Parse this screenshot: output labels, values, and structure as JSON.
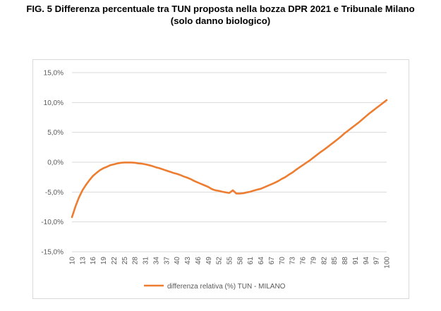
{
  "title_line1": "FIG. 5 Differenza percentuale tra TUN proposta nella bozza DPR 2021 e Tribunale Milano",
  "title_line2": "(solo danno biologico)",
  "colors": {
    "line": "#ED7D31",
    "grid": "#d9d9d9",
    "text": "#595959"
  },
  "chart_data": {
    "type": "line",
    "title": "FIG. 5 Differenza percentuale tra TUN proposta nella bozza DPR 2021 e Tribunale Milano (solo danno biologico)",
    "xlabel": "",
    "ylabel": "",
    "ylim": [
      -15,
      15
    ],
    "y_ticks": [
      "15,0%",
      "10,0%",
      "5,0%",
      "0,0%",
      "-5,0%",
      "-10,0%",
      "-15,0%"
    ],
    "y_tick_values": [
      15,
      10,
      5,
      0,
      -5,
      -10,
      -15
    ],
    "x_tick_labels": [
      "10",
      "13",
      "16",
      "19",
      "22",
      "25",
      "28",
      "31",
      "34",
      "37",
      "40",
      "43",
      "46",
      "49",
      "52",
      "55",
      "58",
      "61",
      "64",
      "67",
      "70",
      "73",
      "76",
      "79",
      "82",
      "85",
      "88",
      "91",
      "94",
      "97",
      "100"
    ],
    "grid": true,
    "legend_position": "bottom",
    "series": [
      {
        "name": "differenza relativa (%) TUN - MILANO",
        "x": [
          10,
          11,
          12,
          13,
          14,
          15,
          16,
          17,
          18,
          19,
          20,
          21,
          22,
          23,
          24,
          25,
          26,
          27,
          28,
          29,
          30,
          31,
          32,
          33,
          34,
          35,
          36,
          37,
          38,
          39,
          40,
          41,
          42,
          43,
          44,
          45,
          46,
          47,
          48,
          49,
          50,
          51,
          52,
          53,
          54,
          55,
          56,
          57,
          58,
          59,
          60,
          61,
          62,
          63,
          64,
          65,
          66,
          67,
          68,
          69,
          70,
          71,
          72,
          73,
          74,
          75,
          76,
          77,
          78,
          79,
          80,
          81,
          82,
          83,
          84,
          85,
          86,
          87,
          88,
          89,
          90,
          91,
          92,
          93,
          94,
          95,
          96,
          97,
          98,
          99,
          100
        ],
        "values": [
          -9.2,
          -7.4,
          -5.9,
          -4.7,
          -3.8,
          -3.0,
          -2.3,
          -1.8,
          -1.35,
          -1.0,
          -0.75,
          -0.5,
          -0.35,
          -0.2,
          -0.1,
          -0.05,
          -0.05,
          -0.05,
          -0.1,
          -0.2,
          -0.25,
          -0.35,
          -0.5,
          -0.65,
          -0.85,
          -1.0,
          -1.2,
          -1.4,
          -1.6,
          -1.8,
          -1.95,
          -2.15,
          -2.4,
          -2.6,
          -2.85,
          -3.15,
          -3.4,
          -3.65,
          -3.9,
          -4.15,
          -4.5,
          -4.7,
          -4.8,
          -4.95,
          -5.05,
          -5.15,
          -4.7,
          -5.25,
          -5.25,
          -5.2,
          -5.05,
          -4.95,
          -4.75,
          -4.6,
          -4.45,
          -4.2,
          -3.95,
          -3.7,
          -3.45,
          -3.15,
          -2.8,
          -2.5,
          -2.1,
          -1.75,
          -1.3,
          -0.9,
          -0.5,
          -0.1,
          0.3,
          0.75,
          1.2,
          1.65,
          2.05,
          2.5,
          2.95,
          3.4,
          3.85,
          4.35,
          4.85,
          5.3,
          5.75,
          6.2,
          6.65,
          7.15,
          7.65,
          8.15,
          8.6,
          9.05,
          9.5,
          9.95,
          10.4
        ]
      }
    ]
  }
}
